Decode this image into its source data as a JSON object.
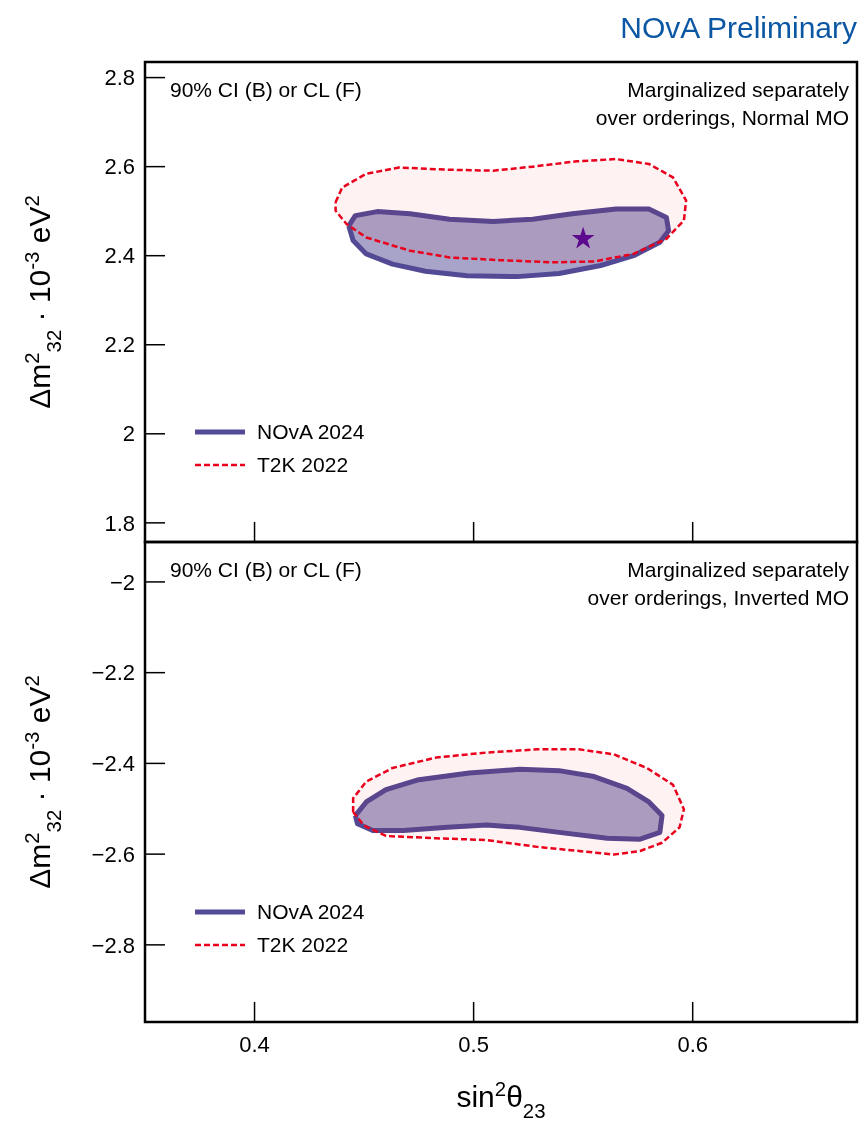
{
  "chart_data": [
    {
      "type": "line",
      "title": "NOvA Preliminary",
      "ylabel": "Δm$^{2}$$_{32}$ · 10$^{-3}$ eV$^{2}$",
      "xlim": [
        0.35,
        0.675
      ],
      "ylim": [
        1.757,
        2.835
      ],
      "tick_labels": "y",
      "legend": "bottom left",
      "annotations": [
        "90% CI (B) or CL (F)",
        "Marginalized separately\nover orderings, Normal MO"
      ],
      "xticks": [
        0.4,
        0.5,
        0.6
      ],
      "yticks": [
        1.8,
        2,
        2.2,
        2.4,
        2.6,
        2.8
      ],
      "series": [
        {
          "name": "NOvA 2024",
          "type": "area",
          "color": "#524a94",
          "line_style": "solid",
          "x": [
            0.443,
            0.446,
            0.456,
            0.471,
            0.489,
            0.509,
            0.527,
            0.545,
            0.565,
            0.58,
            0.588,
            0.589,
            0.585,
            0.573,
            0.558,
            0.539,
            0.52,
            0.497,
            0.478,
            0.463,
            0.451,
            0.445,
            0.443
          ],
          "values": [
            2.467,
            2.49,
            2.499,
            2.494,
            2.482,
            2.477,
            2.482,
            2.494,
            2.505,
            2.505,
            2.486,
            2.456,
            2.43,
            2.4,
            2.378,
            2.36,
            2.353,
            2.355,
            2.365,
            2.381,
            2.404,
            2.434,
            2.467
          ]
        },
        {
          "name": "T2K 2022",
          "type": "area",
          "color": "#e8001c",
          "line_style": "dashed",
          "x": [
            0.437,
            0.44,
            0.451,
            0.466,
            0.489,
            0.509,
            0.527,
            0.547,
            0.565,
            0.58,
            0.591,
            0.597,
            0.596,
            0.588,
            0.573,
            0.555,
            0.536,
            0.512,
            0.489,
            0.471,
            0.451,
            0.442,
            0.437,
            0.437
          ],
          "values": [
            2.52,
            2.553,
            2.584,
            2.598,
            2.593,
            2.591,
            2.6,
            2.612,
            2.617,
            2.606,
            2.576,
            2.524,
            2.479,
            2.438,
            2.404,
            2.387,
            2.385,
            2.39,
            2.396,
            2.411,
            2.441,
            2.471,
            2.501,
            2.52
          ]
        },
        {
          "type": "scatter",
          "marker": "star",
          "color": "#5c0a8e",
          "x": [
            0.55
          ],
          "values": [
            2.438
          ]
        }
      ]
    },
    {
      "type": "line",
      "xlabel": "sin$^{2}$θ$_{23}$",
      "ylabel": "Δm$^{2}$$_{32}$ · 10$^{-3}$ eV$^{2}$",
      "xlim": [
        0.35,
        0.675
      ],
      "ylim": [
        -2.97,
        -1.912
      ],
      "legend": "bottom left",
      "annotations": [
        "90% CI (B) or CL (F)",
        "Marginalized separately\nover orderings, Inverted MO"
      ],
      "xticks": [
        0.4,
        0.5,
        0.6
      ],
      "yticks": [
        {
          "value": -2.8,
          "label": "−2.8"
        },
        {
          "value": -2.6,
          "label": "−2.6"
        },
        {
          "value": -2.4,
          "label": "−2.4"
        },
        {
          "value": -2.2,
          "label": "−2.2"
        },
        {
          "value": -2,
          "label": "−2"
        }
      ],
      "series": [
        {
          "name": "NOvA 2024",
          "type": "area",
          "color": "#524a94",
          "line_style": "solid",
          "x": [
            0.446,
            0.451,
            0.46,
            0.475,
            0.498,
            0.521,
            0.539,
            0.555,
            0.57,
            0.58,
            0.586,
            0.585,
            0.576,
            0.561,
            0.539,
            0.521,
            0.506,
            0.488,
            0.468,
            0.454,
            0.447,
            0.446
          ],
          "values": [
            -2.515,
            -2.485,
            -2.458,
            -2.436,
            -2.421,
            -2.413,
            -2.416,
            -2.429,
            -2.455,
            -2.485,
            -2.515,
            -2.552,
            -2.567,
            -2.565,
            -2.552,
            -2.541,
            -2.536,
            -2.541,
            -2.548,
            -2.548,
            -2.533,
            -2.515
          ]
        },
        {
          "name": "T2K 2022",
          "type": "area",
          "color": "#e8001c",
          "line_style": "dashed",
          "x": [
            0.445,
            0.445,
            0.451,
            0.463,
            0.483,
            0.506,
            0.529,
            0.548,
            0.564,
            0.579,
            0.591,
            0.596,
            0.594,
            0.586,
            0.576,
            0.564,
            0.548,
            0.529,
            0.506,
            0.483,
            0.46,
            0.45,
            0.445
          ],
          "values": [
            -2.507,
            -2.477,
            -2.44,
            -2.41,
            -2.387,
            -2.376,
            -2.369,
            -2.369,
            -2.38,
            -2.41,
            -2.447,
            -2.501,
            -2.541,
            -2.575,
            -2.593,
            -2.601,
            -2.593,
            -2.584,
            -2.569,
            -2.565,
            -2.56,
            -2.537,
            -2.507
          ]
        }
      ]
    }
  ]
}
